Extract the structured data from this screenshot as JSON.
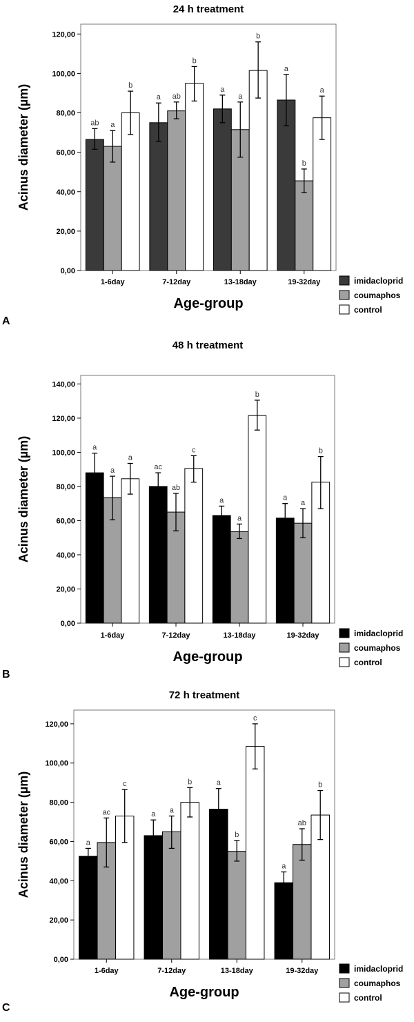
{
  "figure": {
    "panels": [
      {
        "panel_label": "A",
        "chart_data": {
          "type": "bar",
          "title": "24 h treatment",
          "xlabel": "Age-group",
          "ylabel": "Acinus diameter (µm)",
          "ylim": [
            0,
            125
          ],
          "yticks": [
            0,
            20,
            40,
            60,
            80,
            100,
            120
          ],
          "ytick_labels": [
            "0,00",
            "20,00",
            "40,00",
            "60,00",
            "80,00",
            "100,00",
            "120,00"
          ],
          "categories": [
            "1-6day",
            "7-12day",
            "13-18day",
            "19-32day"
          ],
          "legend_position": "bottom-right",
          "series": [
            {
              "name": "imidacloprid",
              "color": "#3a3a3a",
              "values": [
                66.5,
                75,
                82,
                86.5
              ],
              "err_low": [
                61.5,
                65.5,
                75,
                73.5
              ],
              "err_high": [
                72,
                85,
                89,
                99.5
              ],
              "letters": [
                "ab",
                "a",
                "a",
                "a"
              ]
            },
            {
              "name": "coumaphos",
              "color": "#a0a0a0",
              "values": [
                63,
                81,
                71.5,
                45.5
              ],
              "err_low": [
                55,
                77,
                57.5,
                39.5
              ],
              "err_high": [
                71,
                85.5,
                85.5,
                51.5
              ],
              "letters": [
                "a",
                "ab",
                "a",
                "b"
              ]
            },
            {
              "name": "control",
              "color": "#ffffff",
              "values": [
                80,
                95,
                101.5,
                77.5
              ],
              "err_low": [
                69,
                86,
                87.5,
                66.5
              ],
              "err_high": [
                91,
                103.5,
                116,
                88.5
              ],
              "letters": [
                "b",
                "b",
                "b",
                "a"
              ]
            }
          ]
        }
      },
      {
        "panel_label": "B",
        "chart_data": {
          "type": "bar",
          "title": "48 h treatment",
          "xlabel": "Age-group",
          "ylabel": "Acinus diameter (µm)",
          "ylim": [
            0,
            145
          ],
          "yticks": [
            0,
            20,
            40,
            60,
            80,
            100,
            120,
            140
          ],
          "ytick_labels": [
            "0,00",
            "20,00",
            "40,00",
            "60,00",
            "80,00",
            "100,00",
            "120,00",
            "140,00"
          ],
          "categories": [
            "1-6day",
            "7-12day",
            "13-18day",
            "19-32day"
          ],
          "legend_position": "bottom-right",
          "series": [
            {
              "name": "imidacloprid",
              "color": "#000000",
              "values": [
                88,
                80,
                63,
                61.5
              ],
              "err_low": [
                76,
                72,
                57,
                53.5
              ],
              "err_high": [
                99.5,
                88,
                68.5,
                70
              ],
              "letters": [
                "a",
                "ac",
                "a",
                "a"
              ]
            },
            {
              "name": "coumaphos",
              "color": "#a0a0a0",
              "values": [
                73.5,
                65,
                53.5,
                58.5
              ],
              "err_low": [
                60.5,
                54,
                49.5,
                50
              ],
              "err_high": [
                86,
                76,
                58,
                67
              ],
              "letters": [
                "a",
                "ab",
                "a",
                "a"
              ]
            },
            {
              "name": "control",
              "color": "#ffffff",
              "values": [
                84.5,
                90.5,
                121.5,
                82.5
              ],
              "err_low": [
                75.5,
                82.5,
                113,
                67
              ],
              "err_high": [
                93.5,
                98,
                130.5,
                97.5
              ],
              "letters": [
                "a",
                "c",
                "b",
                "b"
              ]
            }
          ]
        }
      },
      {
        "panel_label": "C",
        "chart_data": {
          "type": "bar",
          "title": "72 h treatment",
          "xlabel": "Age-group",
          "ylabel": "Acinus diameter (µm)",
          "ylim": [
            0,
            127
          ],
          "yticks": [
            0,
            20,
            40,
            60,
            80,
            100,
            120
          ],
          "ytick_labels": [
            "0,00",
            "20,00",
            "40,00",
            "60,00",
            "80,00",
            "100,00",
            "120,00"
          ],
          "categories": [
            "1-6day",
            "7-12day",
            "13-18day",
            "19-32day"
          ],
          "legend_position": "bottom-right",
          "series": [
            {
              "name": "imidacloprid",
              "color": "#000000",
              "values": [
                52.5,
                63,
                76.5,
                39
              ],
              "err_low": [
                48.5,
                55.5,
                65.5,
                33.5
              ],
              "err_high": [
                56.5,
                71,
                87,
                44.5
              ],
              "letters": [
                "a",
                "a",
                "a",
                "a"
              ]
            },
            {
              "name": "coumaphos",
              "color": "#a0a0a0",
              "values": [
                59.5,
                65,
                55,
                58.5
              ],
              "err_low": [
                47,
                56.5,
                50,
                50.5
              ],
              "err_high": [
                72,
                73,
                60.5,
                66.5
              ],
              "letters": [
                "ac",
                "a",
                "b",
                "ab"
              ]
            },
            {
              "name": "control",
              "color": "#ffffff",
              "values": [
                73,
                80,
                108.5,
                73.5
              ],
              "err_low": [
                59.5,
                72.5,
                97,
                61
              ],
              "err_high": [
                86.5,
                87.5,
                120,
                86
              ],
              "letters": [
                "c",
                "b",
                "c",
                "b"
              ]
            }
          ]
        }
      }
    ]
  }
}
